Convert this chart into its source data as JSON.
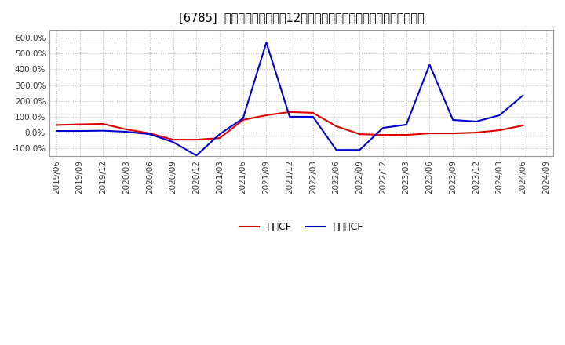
{
  "title": "[6785]  キャッシュフローの12か月移動合計の対前年同期増減率の推移",
  "title_fontsize": 10.5,
  "background_color": "#ffffff",
  "plot_bg_color": "#ffffff",
  "grid_color": "#bbbbbb",
  "ylim": [
    -150,
    650
  ],
  "yticks": [
    -100,
    0,
    100,
    200,
    300,
    400,
    500,
    600
  ],
  "legend_labels": [
    "営業CF",
    "フリーCF"
  ],
  "line_colors": [
    "#dd0000",
    "#0000cc"
  ],
  "dates_eigyo": [
    "2019/06",
    "2019/09",
    "2019/12",
    "2020/03",
    "2020/06",
    "2020/09",
    "2020/12",
    "2021/03",
    "2021/06",
    "2021/09",
    "2021/12",
    "2022/03",
    "2022/06",
    "2022/09",
    "2022/12",
    "2023/03",
    "2023/06",
    "2023/09",
    "2023/12",
    "2024/03",
    "2024/06"
  ],
  "values_eigyo": [
    48,
    52,
    55,
    20,
    -5,
    -45,
    -45,
    -35,
    80,
    110,
    130,
    125,
    40,
    -10,
    -15,
    -15,
    -5,
    -5,
    0,
    15,
    45
  ],
  "dates_free": [
    "2019/06",
    "2019/09",
    "2019/12",
    "2020/03",
    "2020/06",
    "2020/09",
    "2020/12",
    "2021/03",
    "2021/06",
    "2021/09",
    "2021/12",
    "2022/03",
    "2022/06",
    "2022/09",
    "2022/12",
    "2023/03",
    "2023/06",
    "2023/09",
    "2023/12",
    "2024/03",
    "2024/06"
  ],
  "values_free": [
    10,
    10,
    12,
    5,
    -10,
    -60,
    -145,
    -10,
    90,
    570,
    100,
    100,
    -110,
    -110,
    30,
    50,
    430,
    80,
    70,
    110,
    235
  ],
  "xtick_labels": [
    "2019/06",
    "2019/09",
    "2019/12",
    "2020/03",
    "2020/06",
    "2020/09",
    "2020/12",
    "2021/03",
    "2021/06",
    "2021/09",
    "2021/12",
    "2022/03",
    "2022/06",
    "2022/09",
    "2022/12",
    "2023/03",
    "2023/06",
    "2023/09",
    "2023/12",
    "2024/03",
    "2024/06",
    "2024/09"
  ]
}
